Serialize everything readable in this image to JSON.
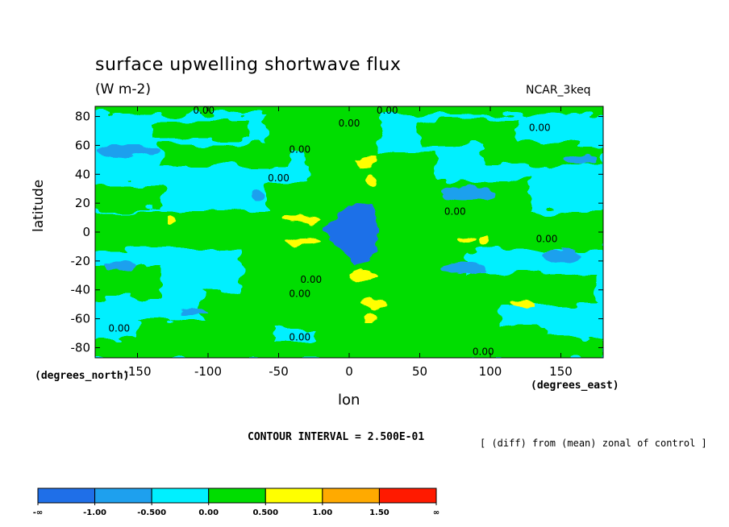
{
  "chart_data": {
    "type": "heatmap",
    "title": "surface upwelling shortwave flux",
    "units": "(W m-2)",
    "model": "NCAR_3keq",
    "xlabel": "lon",
    "ylabel": "latitude",
    "x_unit": "(degrees_east)",
    "y_unit": "(degrees_north)",
    "xlim": [
      -180,
      180
    ],
    "ylim": [
      -87,
      87
    ],
    "x_ticks": [
      -150,
      -100,
      -50,
      0,
      50,
      100,
      150
    ],
    "y_ticks": [
      80,
      60,
      40,
      20,
      0,
      -20,
      -40,
      -60,
      -80
    ],
    "contour_interval_label": "CONTOUR INTERVAL = 2.500E-01",
    "note": "[ (diff) from (mean) zonal of control ]",
    "contour_labels": [
      {
        "text": "0.00",
        "lon": -103,
        "lat": 82
      },
      {
        "text": "0.00",
        "lon": 0,
        "lat": 73
      },
      {
        "text": "0.00",
        "lon": 27,
        "lat": 82
      },
      {
        "text": "0.00",
        "lon": 135,
        "lat": 70
      },
      {
        "text": "0.00",
        "lon": -35,
        "lat": 55
      },
      {
        "text": "0.00",
        "lon": -50,
        "lat": 35
      },
      {
        "text": "0.00",
        "lon": 75,
        "lat": 12
      },
      {
        "text": "0.00",
        "lon": 140,
        "lat": -7
      },
      {
        "text": "0.00",
        "lon": -27,
        "lat": -35
      },
      {
        "text": "0.00",
        "lon": -35,
        "lat": -45
      },
      {
        "text": "0.00",
        "lon": -163,
        "lat": -69
      },
      {
        "text": "0.00",
        "lon": -35,
        "lat": -75
      },
      {
        "text": "0.00",
        "lon": 95,
        "lat": -85
      }
    ],
    "colorbar": {
      "boundaries": [
        "-∞",
        "-1.00",
        "-0.500",
        "0.00",
        "0.500",
        "1.00",
        "1.50",
        "∞"
      ],
      "colors": [
        "#1f6fe8",
        "#1ea0ee",
        "#00f0ff",
        "#00dd00",
        "#ffff00",
        "#ffaa00",
        "#ff1a00"
      ]
    }
  }
}
